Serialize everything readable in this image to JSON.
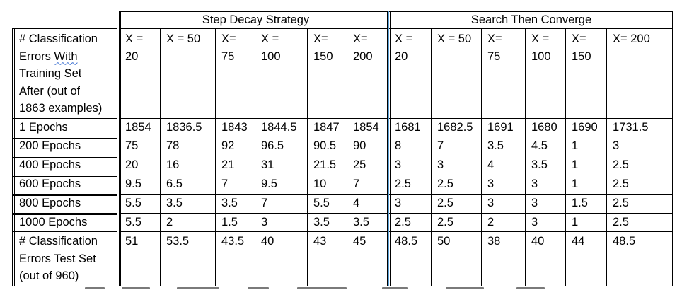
{
  "table": {
    "groups": [
      "Step Decay Strategy",
      "Search Then Converge"
    ],
    "row_header_lines": [
      "# Classification",
      "Errors With",
      "Training Set",
      "After (out of",
      "1863 examples)"
    ],
    "row_header_underlined_word": "With",
    "columns": [
      [
        "X =",
        "20"
      ],
      [
        "X = 50"
      ],
      [
        "X=",
        "75"
      ],
      [
        "X =",
        "100"
      ],
      [
        "X=",
        "150"
      ],
      [
        "X=",
        "200"
      ],
      [
        "X =",
        "20"
      ],
      [
        "X = 50"
      ],
      [
        "X=",
        "75"
      ],
      [
        "X =",
        "100"
      ],
      [
        "X=",
        "150"
      ],
      [
        "X= 200"
      ]
    ],
    "rows": [
      {
        "label": "1 Epochs",
        "values": [
          "1854",
          "1836.5",
          "1843",
          "1844.5",
          "1847",
          "1854",
          "1681",
          "1682.5",
          "1691",
          "1680",
          "1690",
          "1731.5"
        ]
      },
      {
        "label": "200 Epochs",
        "values": [
          "75",
          "78",
          "92",
          "96.5",
          "90.5",
          "90",
          "8",
          "7",
          "3.5",
          "4.5",
          "1",
          "3"
        ]
      },
      {
        "label": "400 Epochs",
        "values": [
          "20",
          "16",
          "21",
          "31",
          "21.5",
          "25",
          "3",
          "3",
          "4",
          "3.5",
          "1",
          "2.5"
        ]
      },
      {
        "label": "600 Epochs",
        "values": [
          "9.5",
          "6.5",
          "7",
          "9.5",
          "10",
          "7",
          "2.5",
          "2.5",
          "3",
          "3",
          "1",
          "2.5"
        ]
      },
      {
        "label": "800 Epochs",
        "values": [
          "5.5",
          "3.5",
          "3.5",
          "7",
          "5.5",
          "4",
          "3",
          "2.5",
          "3",
          "3",
          "1.5",
          "2.5"
        ]
      },
      {
        "label": "1000 Epochs",
        "values": [
          "5.5",
          "2",
          "1.5",
          "3",
          "3.5",
          "3.5",
          "2.5",
          "2.5",
          "2",
          "3",
          "1",
          "2.5"
        ]
      }
    ],
    "test_row": {
      "label_lines": [
        "# Classification",
        "Errors Test Set",
        "(out of 960)"
      ],
      "values": [
        "51",
        "53.5",
        "43.5",
        "40",
        "43",
        "45",
        "48.5",
        "50",
        "38",
        "40",
        "44",
        "48.5"
      ]
    }
  }
}
